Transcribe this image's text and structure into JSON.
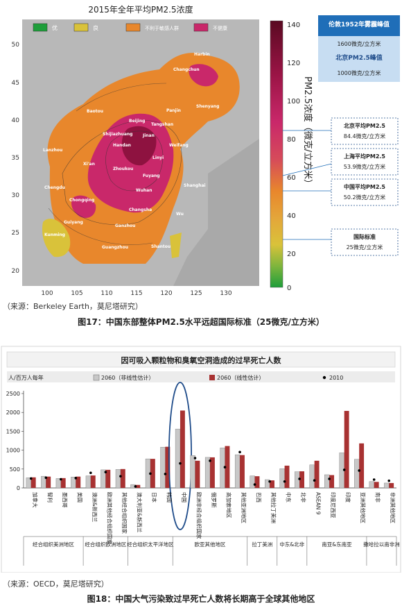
{
  "figure1": {
    "title": "2015年全年平均PM2.5浓度",
    "source": "（来源：Berkeley Earth，莫尼塔研究）",
    "caption": "图17：中国东部整体PM2.5水平远超国际标准（25微克/立方米）",
    "legend": [
      {
        "label": "优",
        "color": "#1e9e3a"
      },
      {
        "label": "良",
        "color": "#d9c23a"
      },
      {
        "label": "不利于敏感人群",
        "color": "#e8872c"
      },
      {
        "label": "不健康",
        "color": "#c9286a"
      }
    ],
    "colorbar_label": "PM2.5浓度（微克/立方米）",
    "colorbar_ticks": [
      "140",
      "120",
      "100",
      "80",
      "60",
      "40",
      "20",
      "0"
    ],
    "lat_ticks": [
      "50",
      "45",
      "40",
      "35",
      "30",
      "25",
      "20"
    ],
    "lon_ticks": [
      "100",
      "105",
      "110",
      "115",
      "120",
      "125",
      "130"
    ],
    "cities": [
      "Harbin",
      "Changchun",
      "Shenyang",
      "Baotou",
      "Panjin",
      "Beijing",
      "Tangshan",
      "Shijiazhuang",
      "Jinan",
      "Weifang",
      "Lanzhou",
      "Handan",
      "Linyi",
      "Xi'an",
      "Zhoukou",
      "Fuyang",
      "Chengdu",
      "Wuhan",
      "Shanghai",
      "Chongqing",
      "Changsha",
      "Wu",
      "Guiyang",
      "Ganzhou",
      "Kunming",
      "Guangzhou",
      "Shantou"
    ],
    "annotations": [
      {
        "title": "伦敦1952年雾霾峰值",
        "value": "1600微克/立方米"
      },
      {
        "title": "北京PM2.5峰值",
        "value": "1000微克/立方米"
      },
      {
        "title": "北京平均PM2.5",
        "value": "84.4微克/立方米"
      },
      {
        "title": "上海平均PM2.5",
        "value": "53.9微克/立方米"
      },
      {
        "title": "中国平均PM2.5",
        "value": "50.2微克/立方米"
      },
      {
        "title": "国际标准",
        "value": "25微克/立方米"
      }
    ]
  },
  "chart_data": {
    "type": "bar",
    "title": "因可吸入颗粒物和臭氧空洞造成的过早死亡人数",
    "ylabel": "人/百万人每年",
    "ylim": [
      0,
      2500
    ],
    "yticks": [
      0,
      500,
      1000,
      1500,
      2000,
      2500
    ],
    "categories": [
      "加拿大",
      "智利",
      "墨西哥",
      "美国",
      "澳洲&新西兰",
      "欧洲其他经合组织国家",
      "其他经合组织国家",
      "澳大利亚&新西兰",
      "日本",
      "韩国",
      "中国",
      "欧洲非经合组织国家",
      "俄罗斯",
      "高加索地区",
      "其他亚洲地区",
      "巴西",
      "其他拉丁美洲",
      "中东",
      "北非",
      "ASEAN 9",
      "印度尼西亚",
      "印度",
      "亚洲其他地区",
      "南非",
      "非洲其他地区"
    ],
    "series": [
      {
        "name": "2060（非线性估计）",
        "color": "#c8c8c8",
        "values": [
          270,
          310,
          250,
          290,
          320,
          480,
          490,
          90,
          770,
          1080,
          1560,
          860,
          810,
          1060,
          880,
          320,
          220,
          510,
          430,
          610,
          350,
          930,
          760,
          170,
          130
        ]
      },
      {
        "name": "2060（线性估计）",
        "color": "#a83232",
        "values": [
          280,
          300,
          260,
          300,
          330,
          480,
          500,
          80,
          770,
          1090,
          2050,
          720,
          810,
          1110,
          870,
          310,
          200,
          590,
          440,
          720,
          340,
          2040,
          1180,
          160,
          130
        ]
      },
      {
        "name": "2010",
        "color": "#000000",
        "values": [
          250,
          270,
          230,
          260,
          400,
          420,
          310,
          40,
          380,
          370,
          650,
          790,
          720,
          550,
          950,
          90,
          170,
          170,
          240,
          200,
          240,
          480,
          460,
          220,
          190
        ]
      }
    ],
    "groups": [
      {
        "label": "经合组织美洲地区",
        "span": [
          0,
          3
        ]
      },
      {
        "label": "经合组织欧洲地区",
        "span": [
          4,
          6
        ]
      },
      {
        "label": "经合组织太平洋地区",
        "span": [
          7,
          9
        ]
      },
      {
        "label": "欧亚其他地区",
        "span": [
          10,
          14
        ]
      },
      {
        "label": "拉丁美洲",
        "span": [
          15,
          16
        ]
      },
      {
        "label": "中东&北非",
        "span": [
          17,
          18
        ]
      },
      {
        "label": "南亚&东南亚",
        "span": [
          19,
          22
        ]
      },
      {
        "label": "撒哈拉以南非洲",
        "span": [
          23,
          24
        ]
      }
    ],
    "highlight_category": "中国",
    "grid": false,
    "legend": "top"
  },
  "figure2": {
    "source": "（来源：OECD，莫尼塔研究）",
    "caption": "图18：中国大气污染致过早死亡人数将长期高于全球其他地区"
  }
}
